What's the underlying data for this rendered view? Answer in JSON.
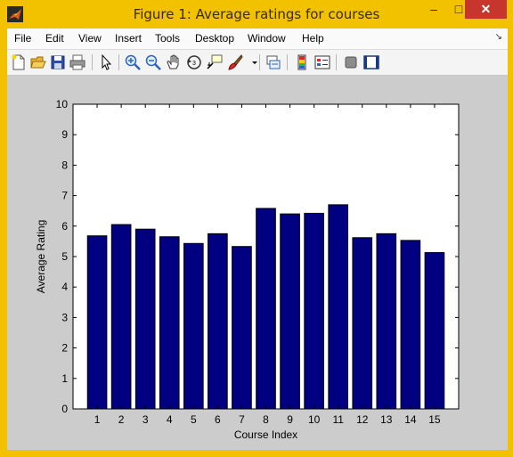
{
  "window": {
    "title": "Figure 1: Average ratings for courses",
    "minimize_glyph": "–",
    "maximize_glyph": "□",
    "close_glyph": "✕"
  },
  "menu": {
    "items": [
      "File",
      "Edit",
      "View",
      "Insert",
      "Tools",
      "Desktop",
      "Window",
      "Help"
    ],
    "dock_glyph": "↘"
  },
  "toolbar": {
    "icons": [
      "new-figure-icon",
      "open-folder-icon",
      "save-icon",
      "print-icon",
      "pointer-arrow-icon",
      "zoom-in-icon",
      "zoom-out-icon",
      "pan-hand-icon",
      "rotate-3d-icon",
      "data-cursor-icon",
      "brush-icon",
      "brush-dropdown-icon",
      "link-plot-icon",
      "colorbar-icon",
      "legend-icon",
      "hide-plot-tools-icon",
      "show-plot-tools-icon"
    ]
  },
  "chart_data": {
    "type": "bar",
    "xlabel": "Course Index",
    "ylabel": "Average Rating",
    "categories": [
      "1",
      "2",
      "3",
      "4",
      "5",
      "6",
      "7",
      "8",
      "9",
      "10",
      "11",
      "12",
      "13",
      "14",
      "15"
    ],
    "values": [
      5.68,
      6.05,
      5.9,
      5.65,
      5.43,
      5.75,
      5.33,
      6.58,
      6.4,
      6.42,
      6.7,
      5.62,
      5.75,
      5.53,
      5.13
    ],
    "ylim": [
      0,
      10
    ],
    "yticks": [
      "0",
      "1",
      "2",
      "3",
      "4",
      "5",
      "6",
      "7",
      "8",
      "9",
      "10"
    ],
    "bar_color": "#000080",
    "axes_background": "#ffffff",
    "grid": false
  },
  "colors": {
    "window_frame": "#f2c200",
    "figure_background": "#cccccc",
    "close_button": "#c7362c"
  }
}
